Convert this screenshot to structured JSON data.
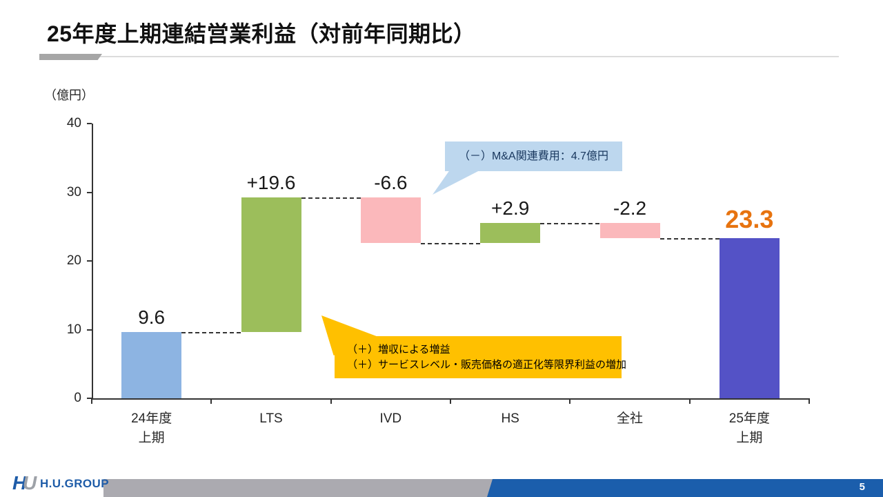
{
  "slide": {
    "title": "25年度上期連結営業利益（対前年同期比）",
    "footer": {
      "logo_mark_h": "H",
      "logo_mark_u": "U",
      "logo_text": "H.U.GROUP",
      "page_number": "5"
    }
  },
  "chart_data": {
    "type": "bar",
    "subtype": "waterfall",
    "title": "25年度上期連結営業利益（対前年同期比）",
    "unit_label": "（億円）",
    "ylabel": "億円",
    "ylim": [
      0,
      40
    ],
    "yticks": [
      0,
      10,
      20,
      30,
      40
    ],
    "grid": false,
    "categories": [
      "24年度\n上期",
      "LTS",
      "IVD",
      "HS",
      "全社",
      "25年度\n上期"
    ],
    "bars": [
      {
        "id": "fy24-h1",
        "category": "24年度\n上期",
        "display": "9.6",
        "value": 9.6,
        "start": 0,
        "end": 9.6,
        "kind": "total-start"
      },
      {
        "id": "lts",
        "category": "LTS",
        "display": "+19.6",
        "value": 19.6,
        "start": 9.6,
        "end": 29.2,
        "kind": "increase"
      },
      {
        "id": "ivd",
        "category": "IVD",
        "display": "-6.6",
        "value": -6.6,
        "start": 29.2,
        "end": 22.6,
        "kind": "decrease"
      },
      {
        "id": "hs",
        "category": "HS",
        "display": "+2.9",
        "value": 2.9,
        "start": 22.6,
        "end": 25.5,
        "kind": "increase"
      },
      {
        "id": "corporate",
        "category": "全社",
        "display": "-2.2",
        "value": -2.2,
        "start": 25.5,
        "end": 23.3,
        "kind": "decrease"
      },
      {
        "id": "fy25-h1",
        "category": "25年度\n上期",
        "display": "23.3",
        "value": 23.3,
        "start": 0,
        "end": 23.3,
        "kind": "total-end"
      }
    ],
    "colors": {
      "total-start": "#8db4e2",
      "increase": "#9cbe5b",
      "decrease": "#fbb8bb",
      "total-end": "#5452c6",
      "total-end-label": "#e7730f"
    }
  },
  "callouts": {
    "mna": {
      "text": "（－）M&A関連費用：4.7億円",
      "bg": "#bdd7ee"
    },
    "gains": {
      "lines": [
        "（＋）増収による増益",
        "（＋）サービスレベル・販売価格の適正化等限界利益の増加"
      ],
      "bg": "#ffc000"
    }
  }
}
